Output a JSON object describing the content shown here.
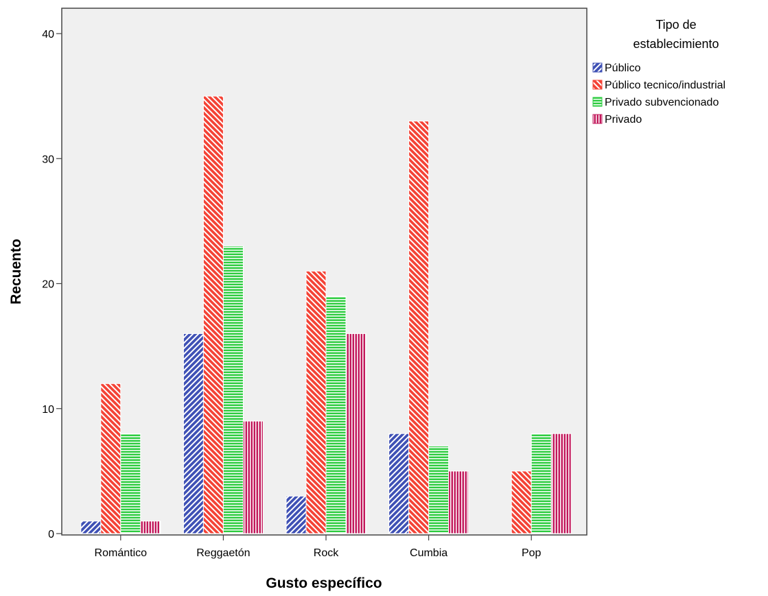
{
  "chart_data": {
    "type": "bar",
    "xlabel": "Gusto específico",
    "ylabel": "Recuento",
    "categories": [
      "Romántico",
      "Reggaetón",
      "Rock",
      "Cumbia",
      "Pop"
    ],
    "ylim": [
      0,
      40
    ],
    "yticks": [
      0,
      10,
      20,
      30,
      40
    ],
    "grid": false,
    "legend": {
      "title": "Tipo de establecimiento",
      "title_lines": [
        "Tipo de",
        "establecimiento"
      ],
      "placement": "right"
    },
    "series": [
      {
        "name": "Público",
        "values": [
          1,
          16,
          3,
          8,
          0
        ],
        "color": "#3f51b5",
        "pattern": "diagonal-right"
      },
      {
        "name": "Público tecnico/industrial",
        "values": [
          12,
          35,
          21,
          33,
          5
        ],
        "color": "#f44336",
        "pattern": "diagonal-left"
      },
      {
        "name": "Privado subvencionado",
        "values": [
          8,
          23,
          19,
          7,
          8
        ],
        "color": "#2ecc40",
        "pattern": "horizontal"
      },
      {
        "name": "Privado",
        "values": [
          1,
          9,
          16,
          5,
          8
        ],
        "color": "#c2185b",
        "pattern": "vertical"
      }
    ]
  }
}
